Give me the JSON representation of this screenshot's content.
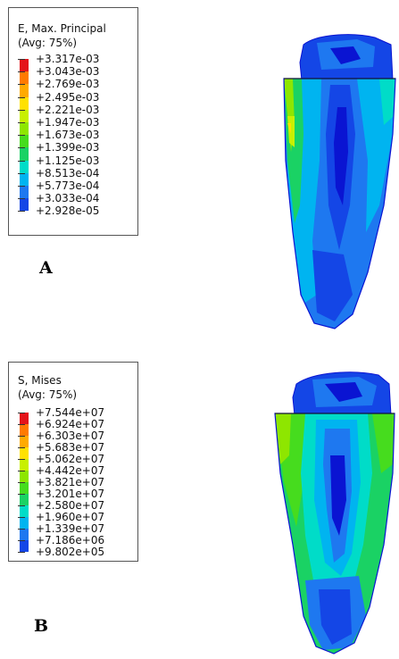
{
  "panels": [
    {
      "id": "A",
      "label": "A",
      "legend": {
        "title_line1": "E, Max. Principal",
        "title_line2": "(Avg: 75%)",
        "values": [
          "+3.317e-03",
          "+3.043e-03",
          "+2.769e-03",
          "+2.495e-03",
          "+2.221e-03",
          "+1.947e-03",
          "+1.673e-03",
          "+1.399e-03",
          "+1.125e-03",
          "+8.513e-04",
          "+5.773e-04",
          "+3.033e-04",
          "+2.928e-05"
        ]
      }
    },
    {
      "id": "B",
      "label": "B",
      "legend": {
        "title_line1": "S, Mises",
        "title_line2": "(Avg: 75%)",
        "values": [
          "+7.544e+07",
          "+6.924e+07",
          "+6.303e+07",
          "+5.683e+07",
          "+5.062e+07",
          "+4.442e+07",
          "+3.821e+07",
          "+3.201e+07",
          "+2.580e+07",
          "+1.960e+07",
          "+1.339e+07",
          "+7.186e+06",
          "+9.802e+05"
        ]
      }
    }
  ],
  "colormap": [
    "#e4141a",
    "#ff7a00",
    "#ffaa00",
    "#ffe100",
    "#c8f000",
    "#8ee600",
    "#46dc1e",
    "#1ad264",
    "#00dcc8",
    "#00b4f0",
    "#1e78f0",
    "#1446e6",
    "#0a14d2"
  ]
}
